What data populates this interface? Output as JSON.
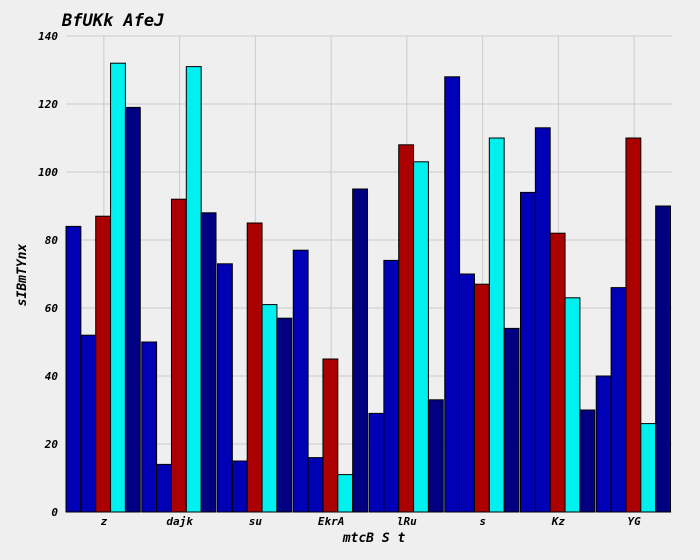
{
  "chart_data": {
    "type": "bar",
    "title": "BfUKk AfeJ",
    "xlabel": "mtcB  S t",
    "ylabel": "sIBmTYnx",
    "categories": [
      "z",
      "dajk",
      "su",
      "EkrA",
      "lRu",
      "s",
      "Kz",
      "YG"
    ],
    "ylim": [
      0,
      140
    ],
    "yticks": [
      0,
      20,
      40,
      60,
      80,
      100,
      120,
      140
    ],
    "grid": true,
    "series": [
      {
        "color": "#0000b4",
        "values": [
          84,
          50,
          73,
          77,
          29,
          128,
          94,
          40
        ]
      },
      {
        "color": "#0000b4",
        "values": [
          52,
          14,
          15,
          16,
          74,
          70,
          113,
          66
        ]
      },
      {
        "color": "#aa0000",
        "values": [
          87,
          92,
          85,
          45,
          108,
          67,
          82,
          110
        ]
      },
      {
        "color": "#00f0f0",
        "values": [
          132,
          131,
          61,
          11,
          103,
          110,
          63,
          26
        ]
      },
      {
        "color": "#000080",
        "values": [
          119,
          88,
          57,
          95,
          33,
          54,
          30,
          90
        ]
      }
    ],
    "background": "#efefef"
  }
}
